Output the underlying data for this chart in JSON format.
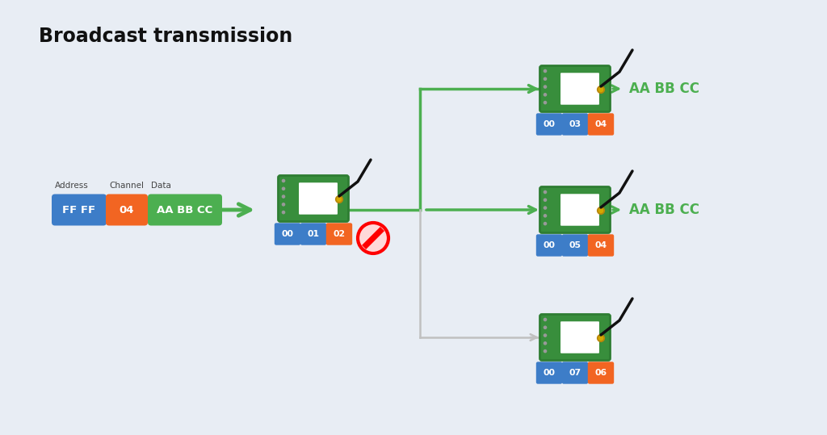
{
  "title": "Broadcast transmission",
  "bg_color": "#e8edf4",
  "green": "#4caf50",
  "orange": "#f26522",
  "blue": "#3d7dc8",
  "gray": "#c0c0c0",
  "white": "#ffffff",
  "dark": "#111111",
  "sender_badges": [
    "00",
    "01",
    "02"
  ],
  "sender_badge_colors": [
    "#3d7dc8",
    "#3d7dc8",
    "#f26522"
  ],
  "packet_texts": [
    "FF FF",
    "04",
    "AA BB CC"
  ],
  "packet_colors": [
    "#3d7dc8",
    "#f26522",
    "#4caf50"
  ],
  "packet_headers": [
    "Address",
    "Channel",
    "Data"
  ],
  "r1_badges": [
    "00",
    "03",
    "04"
  ],
  "r1_badge_colors": [
    "#3d7dc8",
    "#3d7dc8",
    "#f26522"
  ],
  "r2_badges": [
    "00",
    "05",
    "04"
  ],
  "r2_badge_colors": [
    "#3d7dc8",
    "#3d7dc8",
    "#f26522"
  ],
  "r3_badges": [
    "00",
    "07",
    "06"
  ],
  "r3_badge_colors": [
    "#3d7dc8",
    "#3d7dc8",
    "#f26522"
  ],
  "output_data": "AA BB CC"
}
